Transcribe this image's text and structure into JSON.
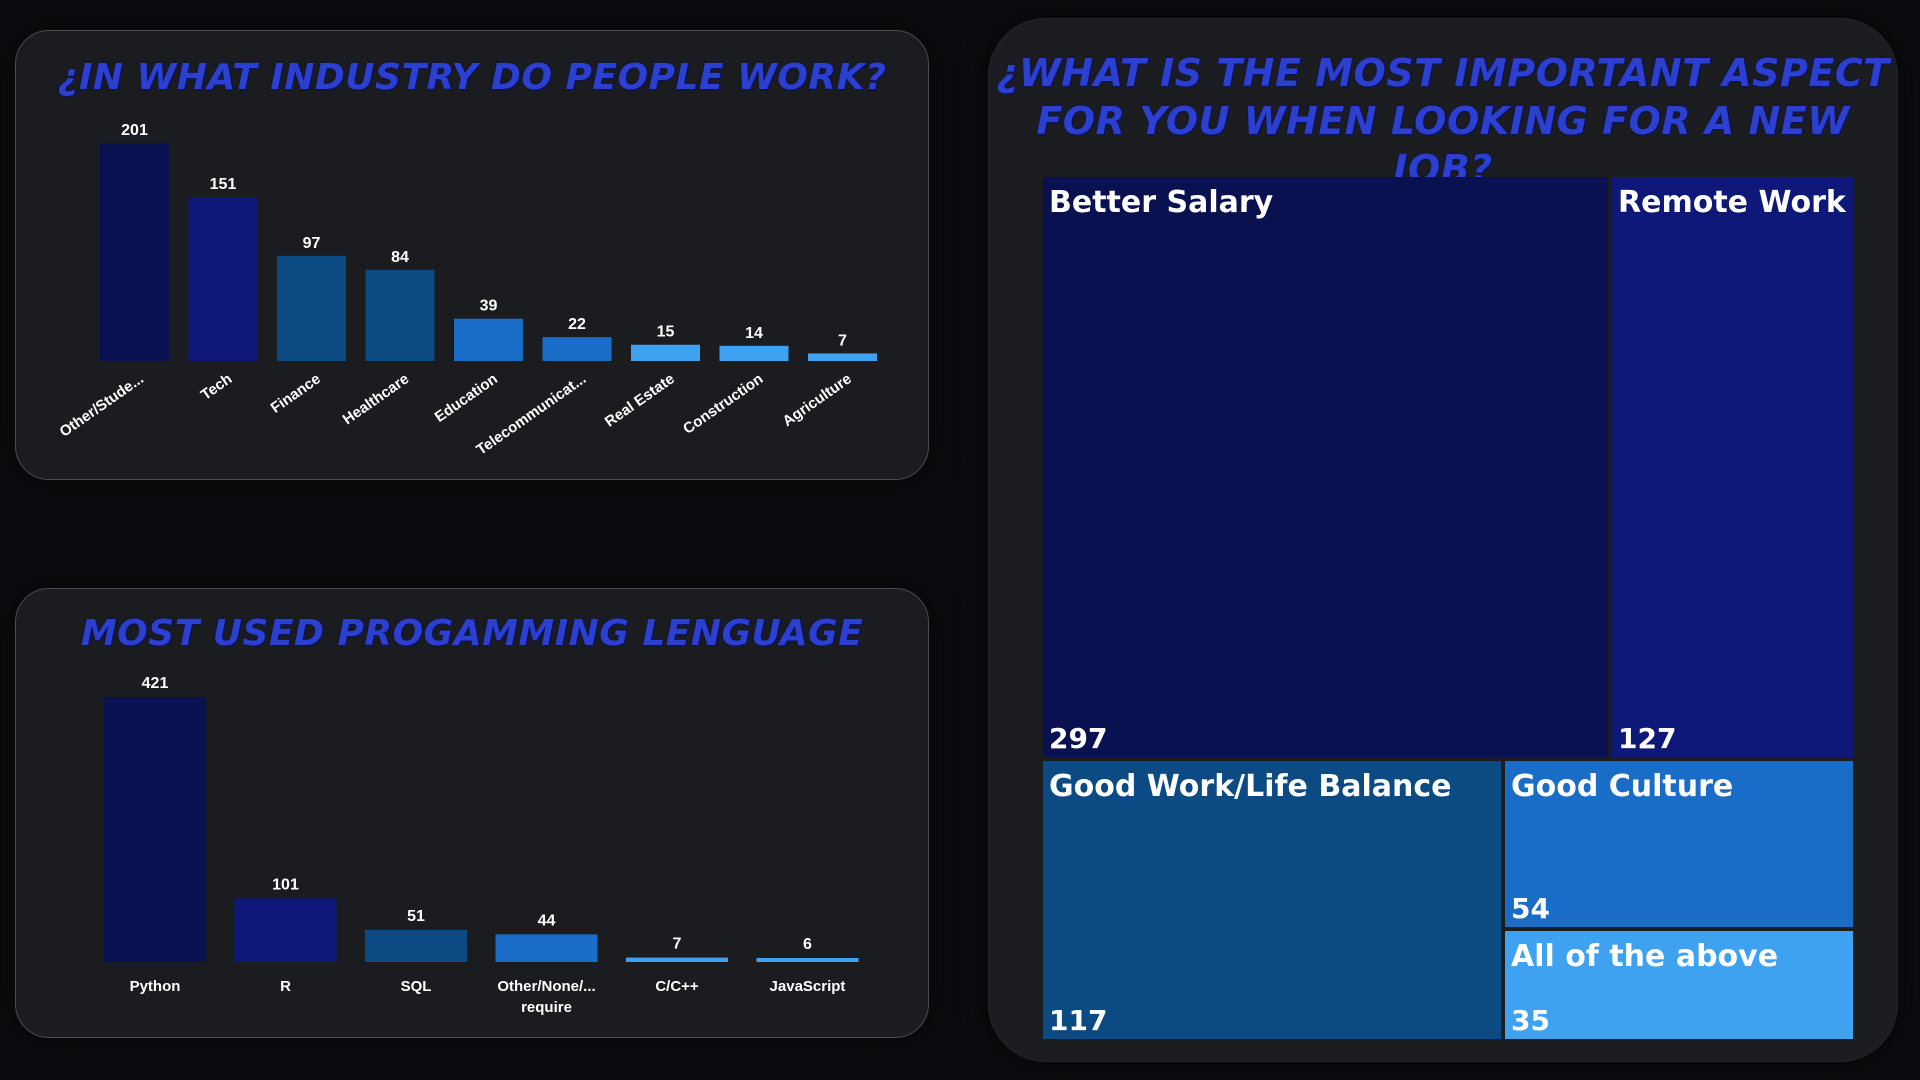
{
  "chart_data": [
    {
      "id": "industry",
      "type": "bar",
      "title": "¿IN WHAT INDUSTRY DO PEOPLE WORK?",
      "categories": [
        "Other/Stude...",
        "Tech",
        "Finance",
        "Healthcare",
        "Education",
        "Telecommunicat...",
        "Real Estate",
        "Construction",
        "Agriculture"
      ],
      "values": [
        201,
        151,
        97,
        84,
        39,
        22,
        15,
        14,
        7
      ],
      "colors": [
        "#0a1150",
        "#0e1878",
        "#0b4a82",
        "#0b4a82",
        "#1a6dc6",
        "#1a6dc6",
        "#3ea2f0",
        "#3ea2f0",
        "#3ea2f0"
      ],
      "ylim": [
        0,
        201
      ]
    },
    {
      "id": "language",
      "type": "bar",
      "title": "MOST USED PROGAMMING LENGUAGE",
      "categories": [
        [
          "Python"
        ],
        [
          "R"
        ],
        [
          "SQL"
        ],
        [
          "Other/None/...",
          "require"
        ],
        [
          "C/C++"
        ],
        [
          "JavaScript"
        ]
      ],
      "values": [
        421,
        101,
        51,
        44,
        7,
        6
      ],
      "colors": [
        "#0a1150",
        "#0e1878",
        "#0b4a82",
        "#1a6dc6",
        "#3ea2f0",
        "#3ea2f0"
      ],
      "ylim": [
        0,
        421
      ]
    },
    {
      "id": "aspect",
      "type": "treemap",
      "title_lines": [
        "¿WHAT IS THE MOST IMPORTANT ASPECT",
        "FOR YOU WHEN LOOKING FOR A NEW JOB?"
      ],
      "items": [
        {
          "label": "Better Salary",
          "value": 297,
          "color": "#0a1150"
        },
        {
          "label": "Remote Work",
          "value": 127,
          "color": "#0e1878"
        },
        {
          "label": "Good Work/Life Balance",
          "value": 117,
          "color": "#0b4a82"
        },
        {
          "label": "Good Culture",
          "value": 54,
          "color": "#1a6dc6"
        },
        {
          "label": "All of the above",
          "value": 35,
          "color": "#3ea2f0"
        }
      ]
    }
  ]
}
